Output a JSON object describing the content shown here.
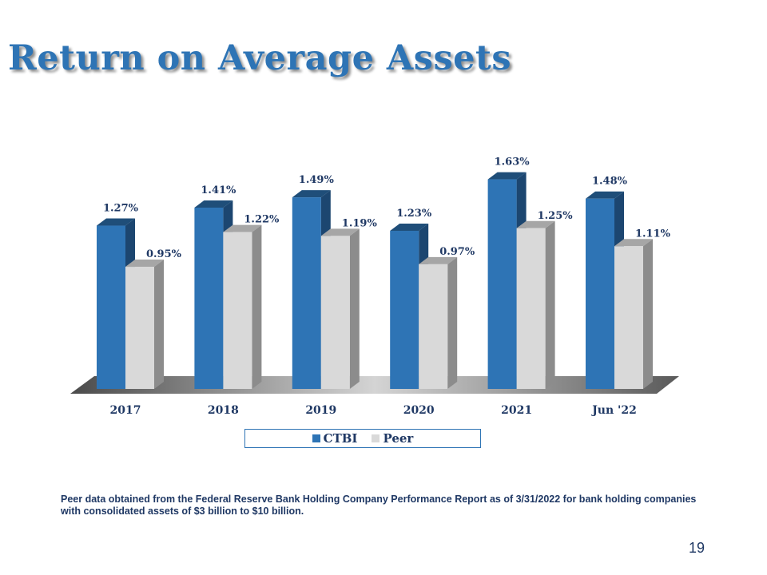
{
  "slide": {
    "title": "Return on Average Assets",
    "footnote": "Peer data obtained from the Federal Reserve Bank Holding Company Performance Report as of 3/31/2022 for bank holding companies with consolidated assets of $3 billion to $10 billion.",
    "page_number": "19"
  },
  "colors": {
    "title": "#2e74b5",
    "ctbi": "#2e74b5",
    "peer": "#d9d9d9",
    "text": "#1f3864"
  },
  "chart_data": {
    "type": "bar",
    "categories": [
      "2017",
      "2018",
      "2019",
      "2020",
      "2021",
      "Jun '22"
    ],
    "series": [
      {
        "name": "CTBI",
        "values": [
          1.27,
          1.41,
          1.49,
          1.23,
          1.63,
          1.48
        ],
        "labels": [
          "1.27%",
          "1.41%",
          "1.49%",
          "1.23%",
          "1.63%",
          "1.48%"
        ]
      },
      {
        "name": "Peer",
        "values": [
          0.95,
          1.22,
          1.19,
          0.97,
          1.25,
          1.11
        ],
        "labels": [
          "0.95%",
          "1.22%",
          "1.19%",
          "0.97%",
          "1.25%",
          "1.11%"
        ]
      }
    ],
    "ylim": [
      0,
      1.8
    ],
    "grid": false,
    "legend_position": "bottom",
    "style": "3d-clustered-column"
  }
}
